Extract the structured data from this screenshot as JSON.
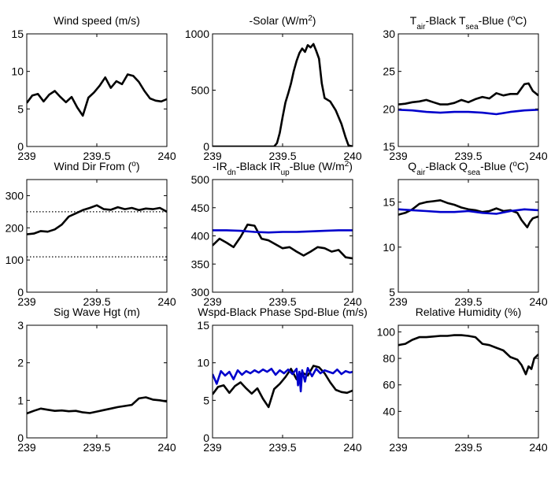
{
  "chart_data": [
    {
      "type": "line",
      "title": "Wind speed (m/s)",
      "title_parts": [
        {
          "t": "Wind speed (m/s)"
        }
      ],
      "xlim": [
        239,
        240
      ],
      "ylim": [
        0,
        15
      ],
      "xticks": [
        239,
        239.5,
        240
      ],
      "yticks": [
        0,
        5,
        10,
        15
      ],
      "grid": false,
      "series": [
        {
          "color": "#000000",
          "x": [
            239,
            239.04,
            239.08,
            239.12,
            239.16,
            239.2,
            239.24,
            239.28,
            239.32,
            239.36,
            239.4,
            239.44,
            239.48,
            239.52,
            239.56,
            239.6,
            239.64,
            239.68,
            239.72,
            239.76,
            239.8,
            239.84,
            239.88,
            239.92,
            239.96,
            240
          ],
          "y": [
            5.8,
            6.8,
            7.0,
            6.0,
            6.9,
            7.4,
            6.6,
            5.9,
            6.6,
            5.2,
            4.1,
            6.5,
            7.2,
            8.1,
            9.2,
            7.8,
            8.7,
            8.3,
            9.6,
            9.4,
            8.6,
            7.4,
            6.4,
            6.1,
            6.0,
            6.3
          ]
        }
      ]
    },
    {
      "type": "line",
      "title": "-Solar (W/m2)",
      "title_parts": [
        {
          "t": "-Solar (W/m"
        },
        {
          "t": "2",
          "sup": true
        },
        {
          "t": ")"
        }
      ],
      "xlim": [
        239,
        240
      ],
      "ylim": [
        0,
        1000
      ],
      "xticks": [
        239,
        239.5,
        240
      ],
      "yticks": [
        0,
        500,
        1000
      ],
      "grid": false,
      "series": [
        {
          "color": "#000000",
          "x": [
            239,
            239.44,
            239.46,
            239.48,
            239.5,
            239.52,
            239.54,
            239.56,
            239.58,
            239.6,
            239.62,
            239.64,
            239.66,
            239.68,
            239.7,
            239.72,
            239.74,
            239.76,
            239.78,
            239.8,
            239.84,
            239.88,
            239.92,
            239.95,
            239.97,
            240
          ],
          "y": [
            0,
            0,
            30,
            120,
            260,
            390,
            470,
            560,
            670,
            760,
            830,
            870,
            840,
            900,
            880,
            910,
            850,
            780,
            560,
            430,
            400,
            320,
            200,
            80,
            10,
            0
          ]
        }
      ]
    },
    {
      "type": "line",
      "title": "Tair-Black  Tsea-Blue (oC)",
      "title_parts": [
        {
          "t": "T"
        },
        {
          "t": "air",
          "sub": true
        },
        {
          "t": "-Black  T"
        },
        {
          "t": "sea",
          "sub": true
        },
        {
          "t": "-Blue ("
        },
        {
          "t": "o",
          "sup": true
        },
        {
          "t": "C)"
        }
      ],
      "xlim": [
        239,
        240
      ],
      "ylim": [
        15,
        30
      ],
      "xticks": [
        239,
        239.5,
        240
      ],
      "yticks": [
        15,
        20,
        25,
        30
      ],
      "grid": false,
      "series": [
        {
          "color": "#000000",
          "x": [
            239,
            239.05,
            239.1,
            239.15,
            239.2,
            239.25,
            239.3,
            239.35,
            239.4,
            239.45,
            239.5,
            239.55,
            239.6,
            239.65,
            239.7,
            239.75,
            239.8,
            239.85,
            239.9,
            239.93,
            239.96,
            240
          ],
          "y": [
            20.6,
            20.7,
            20.9,
            21.0,
            21.2,
            20.9,
            20.6,
            20.6,
            20.8,
            21.2,
            20.9,
            21.3,
            21.6,
            21.4,
            22.1,
            21.8,
            22.0,
            22.0,
            23.3,
            23.4,
            22.4,
            21.8
          ]
        },
        {
          "color": "#0000cc",
          "x": [
            239,
            239.1,
            239.2,
            239.3,
            239.4,
            239.5,
            239.6,
            239.7,
            239.8,
            239.9,
            240
          ],
          "y": [
            19.9,
            19.8,
            19.6,
            19.5,
            19.6,
            19.6,
            19.5,
            19.3,
            19.6,
            19.8,
            19.9
          ]
        }
      ]
    },
    {
      "type": "line",
      "title": "Wind Dir From (o)",
      "title_parts": [
        {
          "t": "Wind Dir From ("
        },
        {
          "t": "o",
          "sup": true
        },
        {
          "t": ")"
        }
      ],
      "xlim": [
        239,
        240
      ],
      "ylim": [
        0,
        350
      ],
      "xticks": [
        239,
        239.5,
        240
      ],
      "yticks": [
        0,
        100,
        200,
        300
      ],
      "grid": false,
      "series": [
        {
          "color": "#000000",
          "x": [
            239,
            239.05,
            239.1,
            239.15,
            239.2,
            239.25,
            239.3,
            239.35,
            239.4,
            239.45,
            239.5,
            239.55,
            239.6,
            239.65,
            239.7,
            239.75,
            239.8,
            239.85,
            239.9,
            239.95,
            240
          ],
          "y": [
            180,
            182,
            190,
            188,
            195,
            210,
            235,
            245,
            255,
            262,
            270,
            258,
            256,
            264,
            258,
            262,
            255,
            260,
            258,
            262,
            250
          ]
        },
        {
          "color": "#000000",
          "dotted": true,
          "x": [
            239,
            240
          ],
          "y": [
            250,
            250
          ]
        },
        {
          "color": "#000000",
          "dotted": true,
          "x": [
            239,
            240
          ],
          "y": [
            110,
            110
          ]
        }
      ]
    },
    {
      "type": "line",
      "title": "-IRdn-Black  IRup-Blue (W/m2)",
      "title_parts": [
        {
          "t": "-IR"
        },
        {
          "t": "dn",
          "sub": true
        },
        {
          "t": "-Black  IR"
        },
        {
          "t": "up",
          "sub": true
        },
        {
          "t": "-Blue (W/m"
        },
        {
          "t": "2",
          "sup": true
        },
        {
          "t": ")"
        }
      ],
      "xlim": [
        239,
        240
      ],
      "ylim": [
        300,
        500
      ],
      "xticks": [
        239,
        239.5,
        240
      ],
      "yticks": [
        300,
        350,
        400,
        450,
        500
      ],
      "grid": false,
      "series": [
        {
          "color": "#000000",
          "x": [
            239,
            239.05,
            239.1,
            239.15,
            239.2,
            239.25,
            239.3,
            239.35,
            239.4,
            239.45,
            239.5,
            239.55,
            239.6,
            239.65,
            239.7,
            239.75,
            239.8,
            239.85,
            239.9,
            239.95,
            240
          ],
          "y": [
            383,
            395,
            388,
            380,
            398,
            420,
            418,
            395,
            392,
            385,
            378,
            380,
            372,
            365,
            372,
            380,
            378,
            372,
            375,
            362,
            360
          ]
        },
        {
          "color": "#0000cc",
          "x": [
            239,
            239.1,
            239.2,
            239.3,
            239.4,
            239.5,
            239.6,
            239.7,
            239.8,
            239.9,
            240
          ],
          "y": [
            410,
            410,
            409,
            407,
            406,
            407,
            407,
            408,
            409,
            410,
            410
          ]
        }
      ]
    },
    {
      "type": "line",
      "title": "Qair-Black  Qsea-Blue (oC)",
      "title_parts": [
        {
          "t": "Q"
        },
        {
          "t": "air",
          "sub": true
        },
        {
          "t": "-Black  Q"
        },
        {
          "t": "sea",
          "sub": true
        },
        {
          "t": "-Blue ("
        },
        {
          "t": "o",
          "sup": true
        },
        {
          "t": "C)"
        }
      ],
      "xlim": [
        239,
        240
      ],
      "ylim": [
        5,
        17.5
      ],
      "xticks": [
        239,
        239.5,
        240
      ],
      "yticks": [
        5,
        10,
        15
      ],
      "grid": false,
      "series": [
        {
          "color": "#000000",
          "x": [
            239,
            239.05,
            239.1,
            239.15,
            239.2,
            239.25,
            239.3,
            239.35,
            239.4,
            239.45,
            239.5,
            239.55,
            239.6,
            239.65,
            239.7,
            239.75,
            239.8,
            239.85,
            239.88,
            239.9,
            239.92,
            239.94,
            239.96,
            240
          ],
          "y": [
            13.6,
            13.8,
            14.2,
            14.8,
            15.0,
            15.1,
            15.2,
            14.9,
            14.7,
            14.4,
            14.2,
            14.1,
            13.9,
            14.0,
            14.3,
            14.0,
            14.1,
            13.8,
            13.0,
            12.6,
            12.2,
            12.8,
            13.2,
            13.4
          ]
        },
        {
          "color": "#0000cc",
          "x": [
            239,
            239.1,
            239.2,
            239.3,
            239.4,
            239.5,
            239.6,
            239.7,
            239.8,
            239.9,
            240
          ],
          "y": [
            14.2,
            14.1,
            14.0,
            13.9,
            13.9,
            14.0,
            13.8,
            13.7,
            14.0,
            14.2,
            14.1
          ]
        }
      ]
    },
    {
      "type": "line",
      "title": "Sig Wave Hgt (m)",
      "title_parts": [
        {
          "t": "Sig Wave Hgt (m)"
        }
      ],
      "xlim": [
        239,
        240
      ],
      "ylim": [
        0,
        3
      ],
      "xticks": [
        239,
        239.5,
        240
      ],
      "yticks": [
        0,
        1,
        2,
        3
      ],
      "grid": false,
      "series": [
        {
          "color": "#000000",
          "x": [
            239,
            239.05,
            239.1,
            239.15,
            239.2,
            239.25,
            239.3,
            239.35,
            239.4,
            239.45,
            239.5,
            239.55,
            239.6,
            239.65,
            239.7,
            239.75,
            239.8,
            239.85,
            239.9,
            239.95,
            240
          ],
          "y": [
            0.65,
            0.72,
            0.78,
            0.75,
            0.72,
            0.73,
            0.71,
            0.72,
            0.68,
            0.66,
            0.7,
            0.74,
            0.78,
            0.82,
            0.85,
            0.88,
            1.05,
            1.08,
            1.02,
            1.0,
            0.97
          ]
        }
      ]
    },
    {
      "type": "line",
      "title": "Wspd-Black  Phase Spd-Blue (m/s)",
      "title_parts": [
        {
          "t": "Wspd-Black  Phase Spd-Blue (m/s)"
        }
      ],
      "xlim": [
        239,
        240
      ],
      "ylim": [
        0,
        15
      ],
      "xticks": [
        239,
        239.5,
        240
      ],
      "yticks": [
        0,
        5,
        10,
        15
      ],
      "grid": false,
      "series": [
        {
          "color": "#000000",
          "x": [
            239,
            239.04,
            239.08,
            239.12,
            239.16,
            239.2,
            239.24,
            239.28,
            239.32,
            239.36,
            239.4,
            239.44,
            239.48,
            239.52,
            239.56,
            239.6,
            239.64,
            239.68,
            239.72,
            239.76,
            239.8,
            239.84,
            239.88,
            239.92,
            239.96,
            240
          ],
          "y": [
            5.8,
            6.8,
            7.0,
            6.0,
            6.9,
            7.4,
            6.6,
            5.9,
            6.6,
            5.2,
            4.1,
            6.5,
            7.2,
            8.1,
            9.2,
            7.8,
            8.7,
            8.3,
            9.6,
            9.4,
            8.6,
            7.4,
            6.4,
            6.1,
            6.0,
            6.3
          ]
        },
        {
          "color": "#0000cc",
          "x": [
            239,
            239.03,
            239.06,
            239.09,
            239.12,
            239.15,
            239.18,
            239.21,
            239.24,
            239.27,
            239.3,
            239.33,
            239.36,
            239.39,
            239.42,
            239.45,
            239.48,
            239.51,
            239.54,
            239.57,
            239.6,
            239.61,
            239.62,
            239.63,
            239.64,
            239.66,
            239.68,
            239.71,
            239.74,
            239.77,
            239.8,
            239.83,
            239.86,
            239.89,
            239.92,
            239.95,
            239.98,
            240
          ],
          "y": [
            8.5,
            7.2,
            8.9,
            8.3,
            8.8,
            7.8,
            9.0,
            8.4,
            8.9,
            8.6,
            9.0,
            8.7,
            9.1,
            8.8,
            9.2,
            8.4,
            9.0,
            8.6,
            9.1,
            8.5,
            9.2,
            7.0,
            8.8,
            6.2,
            9.0,
            7.5,
            9.3,
            8.2,
            9.2,
            8.6,
            9.0,
            8.8,
            8.6,
            9.1,
            8.5,
            8.9,
            8.7,
            8.8
          ]
        }
      ]
    },
    {
      "type": "line",
      "title": "Relative Humidity (%)",
      "title_parts": [
        {
          "t": "Relative Humidity (%)"
        }
      ],
      "xlim": [
        239,
        240
      ],
      "ylim": [
        20,
        105
      ],
      "xticks": [
        239,
        239.5,
        240
      ],
      "yticks": [
        40,
        60,
        80,
        100
      ],
      "grid": false,
      "series": [
        {
          "color": "#000000",
          "x": [
            239,
            239.05,
            239.1,
            239.15,
            239.2,
            239.25,
            239.3,
            239.35,
            239.4,
            239.45,
            239.5,
            239.55,
            239.6,
            239.65,
            239.7,
            239.75,
            239.8,
            239.85,
            239.88,
            239.91,
            239.93,
            239.95,
            239.97,
            240
          ],
          "y": [
            90,
            91,
            94,
            96,
            96,
            96.5,
            97,
            97,
            97.5,
            97.5,
            97,
            96,
            91,
            90,
            88,
            86,
            81,
            79,
            75,
            68,
            74,
            72,
            80,
            83
          ]
        }
      ]
    }
  ]
}
